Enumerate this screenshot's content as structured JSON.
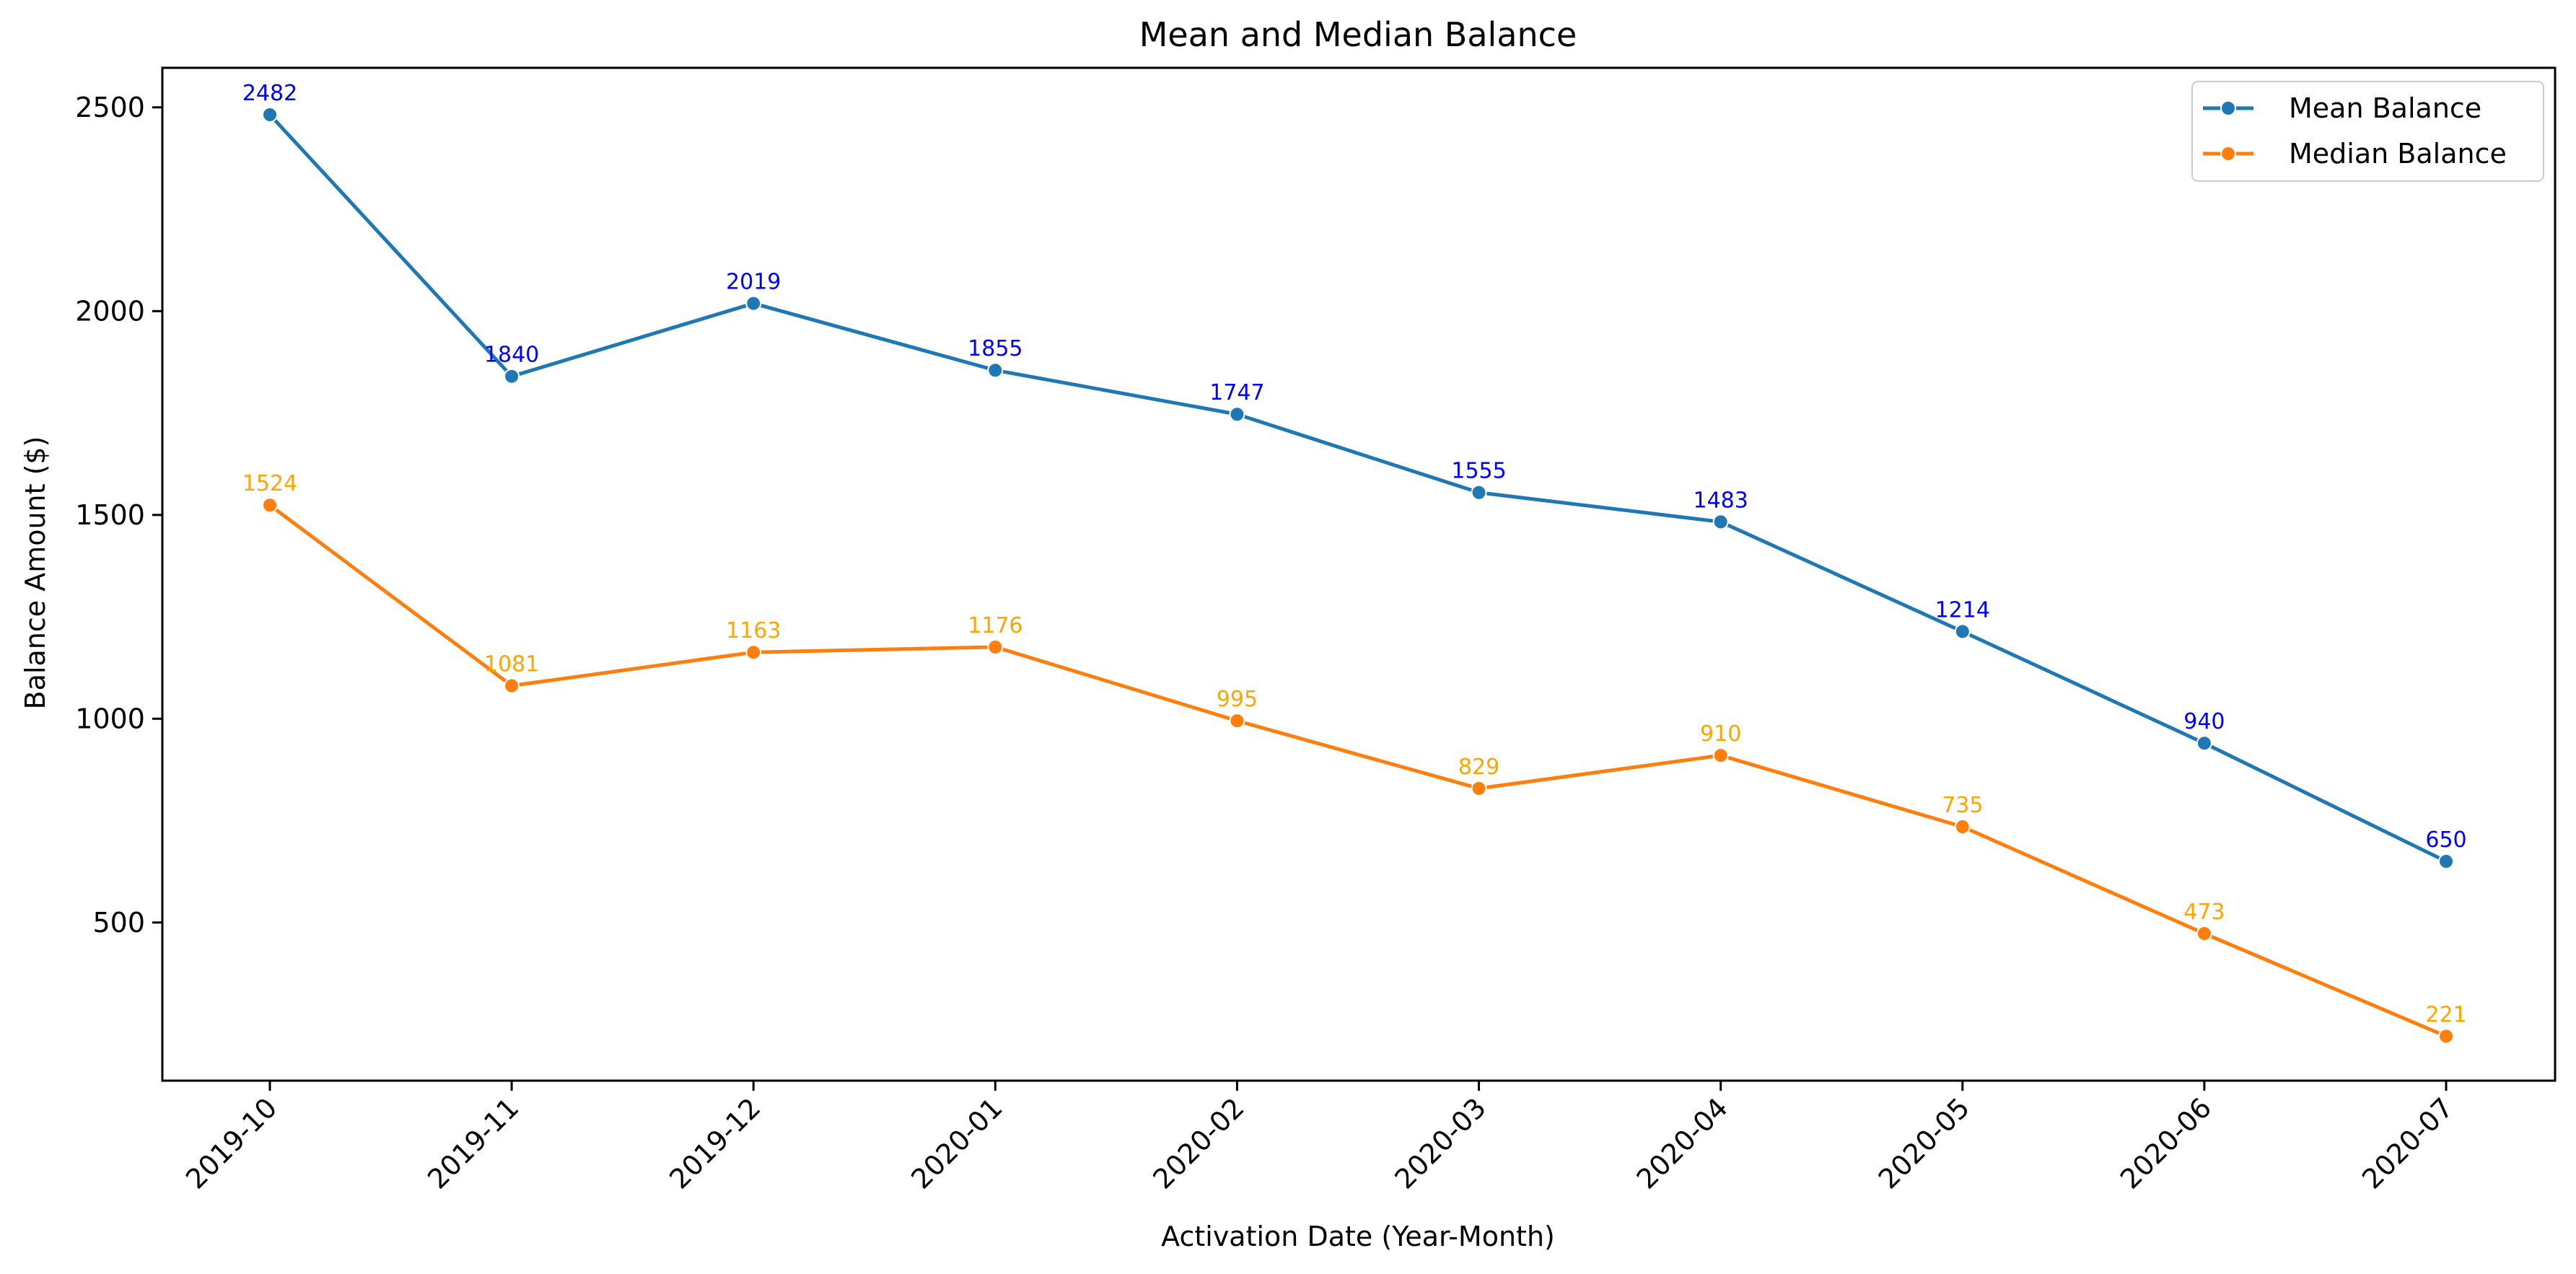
{
  "chart_data": {
    "type": "line",
    "title": "Mean and Median Balance",
    "xlabel": "Activation Date (Year-Month)",
    "ylabel": "Balance Amount ($)",
    "categories": [
      "2019-10",
      "2019-11",
      "2019-12",
      "2020-01",
      "2020-02",
      "2020-03",
      "2020-04",
      "2020-05",
      "2020-06",
      "2020-07"
    ],
    "yticks": [
      500,
      1000,
      1500,
      2000,
      2500
    ],
    "ylim": [
      112,
      2597
    ],
    "grid": false,
    "legend_position": "top-right",
    "series": [
      {
        "name": "Mean Balance",
        "values": [
          2482,
          1840,
          2019,
          1855,
          1747,
          1555,
          1483,
          1214,
          940,
          650
        ],
        "color": "#1f77b4",
        "label_color": "#0000ff",
        "marker": "circle"
      },
      {
        "name": "Median Balance",
        "values": [
          1524,
          1081,
          1163,
          1176,
          995,
          829,
          910,
          735,
          473,
          221
        ],
        "color": "#ff7f0e",
        "label_color": "#ffa500",
        "marker": "circle"
      }
    ]
  }
}
